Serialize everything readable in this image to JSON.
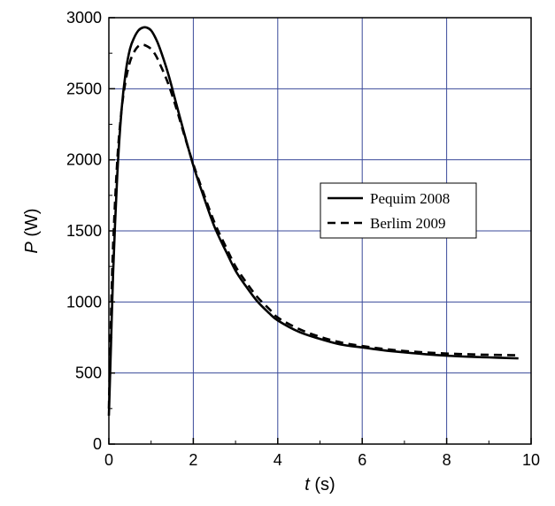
{
  "chart_data": {
    "type": "line",
    "title": "",
    "xlabel": {
      "symbol": "t",
      "unit": " (s)"
    },
    "ylabel": {
      "symbol": "P",
      "unit": " (W)"
    },
    "xlim": [
      0,
      10
    ],
    "ylim": [
      0,
      3000
    ],
    "xticks": [
      0,
      2,
      4,
      6,
      8,
      10
    ],
    "yticks": [
      0,
      500,
      1000,
      1500,
      2000,
      2500,
      3000
    ],
    "grid": true,
    "grid_color": "#3a4a9a",
    "legend": {
      "placement": "center-right"
    },
    "series": [
      {
        "name": "Pequim 2008",
        "style": "solid",
        "color": "#000000",
        "x": [
          0,
          0.05,
          0.1,
          0.2,
          0.3,
          0.4,
          0.5,
          0.6,
          0.7,
          0.8,
          0.9,
          1.0,
          1.1,
          1.2,
          1.4,
          1.6,
          1.8,
          2.0,
          2.2,
          2.5,
          2.8,
          3.0,
          3.2,
          3.5,
          3.8,
          4.0,
          4.5,
          5.0,
          5.5,
          6.0,
          6.5,
          7.0,
          7.5,
          8.0,
          8.5,
          9.0,
          9.5,
          9.7
        ],
        "y": [
          200,
          700,
          1200,
          1900,
          2350,
          2620,
          2780,
          2860,
          2910,
          2930,
          2930,
          2910,
          2860,
          2790,
          2610,
          2390,
          2170,
          1960,
          1780,
          1530,
          1340,
          1220,
          1130,
          1010,
          920,
          870,
          790,
          740,
          700,
          680,
          660,
          645,
          632,
          622,
          615,
          610,
          605,
          603
        ]
      },
      {
        "name": "Berlim 2009",
        "style": "dashed",
        "color": "#000000",
        "x": [
          0,
          0.05,
          0.1,
          0.2,
          0.3,
          0.4,
          0.5,
          0.6,
          0.7,
          0.8,
          0.9,
          1.0,
          1.1,
          1.2,
          1.4,
          1.6,
          1.8,
          2.0,
          2.2,
          2.5,
          2.8,
          3.0,
          3.2,
          3.5,
          3.8,
          4.0,
          4.5,
          5.0,
          5.5,
          6.0,
          6.5,
          7.0,
          7.5,
          8.0,
          8.5,
          9.0,
          9.5,
          9.7
        ],
        "y": [
          250,
          900,
          1400,
          2000,
          2350,
          2560,
          2690,
          2760,
          2800,
          2810,
          2800,
          2780,
          2740,
          2680,
          2540,
          2360,
          2160,
          1970,
          1800,
          1560,
          1370,
          1250,
          1160,
          1040,
          950,
          890,
          810,
          755,
          715,
          690,
          670,
          655,
          645,
          637,
          632,
          628,
          626,
          625
        ]
      }
    ]
  }
}
